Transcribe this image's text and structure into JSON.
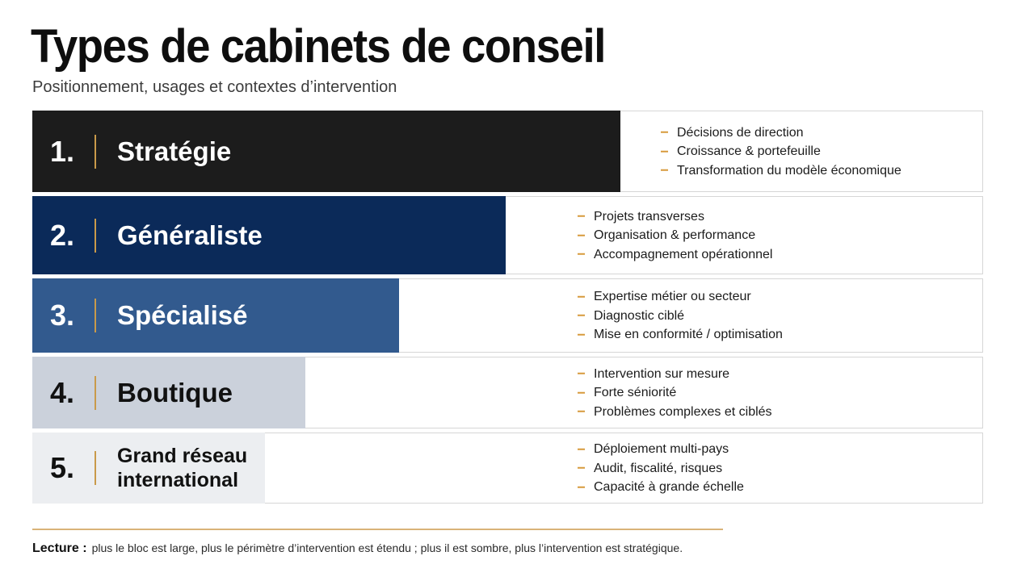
{
  "title": "Types de cabinets de conseil",
  "subtitle": "Positionnement, usages et contextes d’intervention",
  "colors": {
    "accent": "#d79a3c",
    "row1": "#1c1c1c",
    "row2": "#0b2a59",
    "row3": "#325a8e",
    "row4": "#cbd1db",
    "row5": "#eceef1"
  },
  "rows": [
    {
      "number": "1.",
      "label": "Stratégie",
      "bullets": [
        "Décisions de direction",
        "Croissance & portefeuille",
        "Transformation du modèle économique"
      ]
    },
    {
      "number": "2.",
      "label": "Généraliste",
      "bullets": [
        "Projets transverses",
        "Organisation & performance",
        "Accompagnement opérationnel"
      ]
    },
    {
      "number": "3.",
      "label": "Spécialisé",
      "bullets": [
        "Expertise métier ou secteur",
        "Diagnostic ciblé",
        "Mise en conformité / optimisation"
      ]
    },
    {
      "number": "4.",
      "label": "Boutique",
      "bullets": [
        "Intervention sur mesure",
        "Forte séniorité",
        "Problèmes complexes et ciblés"
      ]
    },
    {
      "number": "5.",
      "label_line1": "Grand réseau",
      "label_line2": "international",
      "bullets": [
        "Déploiement multi-pays",
        "Audit, fiscalité, risques",
        "Capacité à grande échelle"
      ]
    }
  ],
  "footer": {
    "label": "Lecture :",
    "text": "plus le bloc est large, plus le périmètre d’intervention est étendu ; plus il est sombre, plus l’intervention est stratégique."
  }
}
